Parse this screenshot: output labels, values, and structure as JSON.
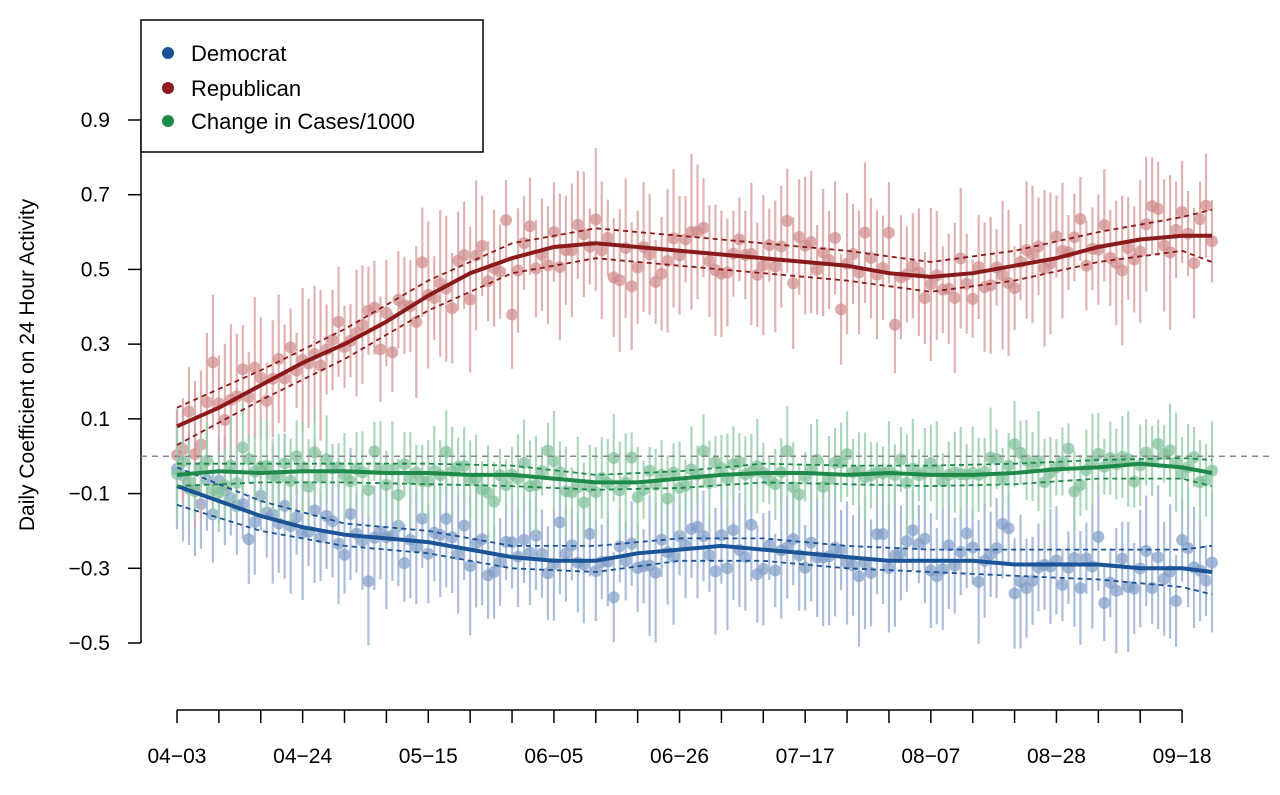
{
  "chart_data": {
    "type": "scatter",
    "title": "",
    "xlabel": "",
    "ylabel": "Daily Coefficient on 24 Hour Activity",
    "x_tick_labels": [
      "04−03",
      "04−24",
      "05−15",
      "06−05",
      "06−26",
      "07−17",
      "08−07",
      "08−28",
      "09−18"
    ],
    "y_tick_labels": [
      "0.9",
      "0.7",
      "0.5",
      "0.3",
      "0.1",
      "−0.1",
      "−0.3",
      "−0.5"
    ],
    "y_ticks": [
      0.9,
      0.7,
      0.5,
      0.3,
      0.1,
      -0.1,
      -0.3,
      -0.5
    ],
    "ylim": [
      -0.66,
      1.15
    ],
    "x_range_days": [
      0,
      173
    ],
    "reference_line": 0,
    "legend_position": "top-left",
    "series": [
      {
        "name": "Democrat",
        "color": "#1a5396",
        "trend": [
          [
            0,
            -0.08
          ],
          [
            7,
            -0.12
          ],
          [
            14,
            -0.16
          ],
          [
            21,
            -0.19
          ],
          [
            28,
            -0.21
          ],
          [
            35,
            -0.22
          ],
          [
            42,
            -0.23
          ],
          [
            49,
            -0.25
          ],
          [
            56,
            -0.27
          ],
          [
            63,
            -0.28
          ],
          [
            70,
            -0.28
          ],
          [
            77,
            -0.26
          ],
          [
            84,
            -0.25
          ],
          [
            91,
            -0.24
          ],
          [
            98,
            -0.25
          ],
          [
            105,
            -0.26
          ],
          [
            112,
            -0.27
          ],
          [
            119,
            -0.28
          ],
          [
            126,
            -0.28
          ],
          [
            133,
            -0.28
          ],
          [
            140,
            -0.29
          ],
          [
            147,
            -0.29
          ],
          [
            154,
            -0.29
          ],
          [
            161,
            -0.3
          ],
          [
            168,
            -0.3
          ],
          [
            173,
            -0.31
          ]
        ],
        "band_upper": [
          [
            0,
            -0.03
          ],
          [
            14,
            -0.12
          ],
          [
            28,
            -0.18
          ],
          [
            42,
            -0.2
          ],
          [
            56,
            -0.24
          ],
          [
            70,
            -0.24
          ],
          [
            84,
            -0.22
          ],
          [
            98,
            -0.22
          ],
          [
            112,
            -0.24
          ],
          [
            126,
            -0.25
          ],
          [
            140,
            -0.25
          ],
          [
            154,
            -0.25
          ],
          [
            168,
            -0.25
          ],
          [
            173,
            -0.24
          ]
        ],
        "band_lower": [
          [
            0,
            -0.13
          ],
          [
            14,
            -0.2
          ],
          [
            28,
            -0.24
          ],
          [
            42,
            -0.26
          ],
          [
            56,
            -0.3
          ],
          [
            70,
            -0.31
          ],
          [
            84,
            -0.28
          ],
          [
            98,
            -0.28
          ],
          [
            112,
            -0.3
          ],
          [
            126,
            -0.31
          ],
          [
            140,
            -0.32
          ],
          [
            154,
            -0.33
          ],
          [
            168,
            -0.35
          ],
          [
            173,
            -0.37
          ]
        ]
      },
      {
        "name": "Republican",
        "color": "#8b1a1a",
        "trend": [
          [
            0,
            0.08
          ],
          [
            7,
            0.13
          ],
          [
            14,
            0.19
          ],
          [
            21,
            0.25
          ],
          [
            28,
            0.3
          ],
          [
            35,
            0.36
          ],
          [
            42,
            0.43
          ],
          [
            49,
            0.49
          ],
          [
            56,
            0.53
          ],
          [
            63,
            0.56
          ],
          [
            70,
            0.57
          ],
          [
            77,
            0.56
          ],
          [
            84,
            0.55
          ],
          [
            91,
            0.54
          ],
          [
            98,
            0.53
          ],
          [
            105,
            0.52
          ],
          [
            112,
            0.51
          ],
          [
            119,
            0.49
          ],
          [
            126,
            0.48
          ],
          [
            133,
            0.49
          ],
          [
            140,
            0.51
          ],
          [
            147,
            0.53
          ],
          [
            154,
            0.56
          ],
          [
            161,
            0.58
          ],
          [
            168,
            0.59
          ],
          [
            173,
            0.59
          ]
        ],
        "band_upper": [
          [
            0,
            0.13
          ],
          [
            14,
            0.23
          ],
          [
            28,
            0.34
          ],
          [
            42,
            0.47
          ],
          [
            56,
            0.57
          ],
          [
            70,
            0.61
          ],
          [
            84,
            0.59
          ],
          [
            98,
            0.57
          ],
          [
            112,
            0.55
          ],
          [
            126,
            0.52
          ],
          [
            140,
            0.55
          ],
          [
            154,
            0.6
          ],
          [
            168,
            0.64
          ],
          [
            173,
            0.66
          ]
        ],
        "band_lower": [
          [
            0,
            0.03
          ],
          [
            14,
            0.15
          ],
          [
            28,
            0.26
          ],
          [
            42,
            0.39
          ],
          [
            56,
            0.49
          ],
          [
            70,
            0.53
          ],
          [
            84,
            0.51
          ],
          [
            98,
            0.49
          ],
          [
            112,
            0.47
          ],
          [
            126,
            0.44
          ],
          [
            140,
            0.47
          ],
          [
            154,
            0.52
          ],
          [
            168,
            0.55
          ],
          [
            173,
            0.52
          ]
        ]
      },
      {
        "name": "Change in Cases/1000",
        "color": "#1e8a4a",
        "trend": [
          [
            0,
            -0.05
          ],
          [
            7,
            -0.04
          ],
          [
            14,
            -0.045
          ],
          [
            21,
            -0.04
          ],
          [
            28,
            -0.04
          ],
          [
            35,
            -0.045
          ],
          [
            42,
            -0.045
          ],
          [
            49,
            -0.05
          ],
          [
            56,
            -0.05
          ],
          [
            63,
            -0.06
          ],
          [
            70,
            -0.07
          ],
          [
            77,
            -0.07
          ],
          [
            84,
            -0.06
          ],
          [
            91,
            -0.05
          ],
          [
            98,
            -0.045
          ],
          [
            105,
            -0.045
          ],
          [
            112,
            -0.05
          ],
          [
            119,
            -0.045
          ],
          [
            126,
            -0.05
          ],
          [
            133,
            -0.05
          ],
          [
            140,
            -0.045
          ],
          [
            147,
            -0.035
          ],
          [
            154,
            -0.03
          ],
          [
            161,
            -0.02
          ],
          [
            168,
            -0.03
          ],
          [
            173,
            -0.045
          ]
        ],
        "band_upper": [
          [
            0,
            -0.02
          ],
          [
            14,
            -0.02
          ],
          [
            28,
            -0.02
          ],
          [
            42,
            -0.02
          ],
          [
            56,
            -0.025
          ],
          [
            70,
            -0.05
          ],
          [
            84,
            -0.04
          ],
          [
            98,
            -0.02
          ],
          [
            112,
            -0.025
          ],
          [
            126,
            -0.025
          ],
          [
            140,
            -0.02
          ],
          [
            154,
            -0.01
          ],
          [
            168,
            -0.005
          ],
          [
            173,
            -0.01
          ]
        ],
        "band_lower": [
          [
            0,
            -0.08
          ],
          [
            14,
            -0.07
          ],
          [
            28,
            -0.07
          ],
          [
            42,
            -0.075
          ],
          [
            56,
            -0.08
          ],
          [
            70,
            -0.09
          ],
          [
            84,
            -0.085
          ],
          [
            98,
            -0.07
          ],
          [
            112,
            -0.075
          ],
          [
            126,
            -0.08
          ],
          [
            140,
            -0.075
          ],
          [
            154,
            -0.06
          ],
          [
            168,
            -0.06
          ],
          [
            173,
            -0.08
          ]
        ]
      }
    ]
  }
}
